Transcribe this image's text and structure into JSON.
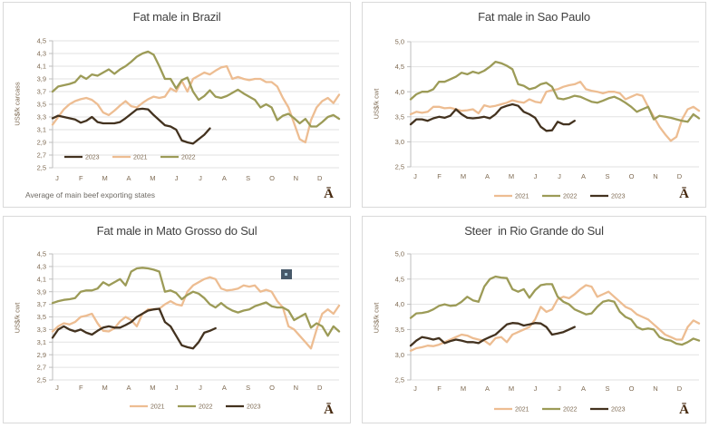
{
  "page": {
    "background": "#ffffff",
    "brand_glyph": "Ā"
  },
  "colors": {
    "series_2021": "#edbd92",
    "series_2022": "#9c9b57",
    "series_2023": "#43321f",
    "gridline": "#e2e2e2",
    "axis": "#bdbdbd",
    "tick_text": "#7e6a52",
    "title_text": "#3f3f3f",
    "footer_text": "#6e6a64",
    "panel_border": "#d9d9d9",
    "artifact_square": "#47596a",
    "artifact_dot": "#a9c9d9"
  },
  "months": [
    "J",
    "F",
    "M",
    "A",
    "M",
    "J",
    "J",
    "A",
    "S",
    "O",
    "N",
    "D"
  ],
  "chart_data": [
    {
      "type": "line",
      "title": "Fat male in Brazil",
      "ylabel": "US$/k carcass",
      "footer": "Average  of main  beef  exporting  states",
      "ylim": [
        2.5,
        4.5
      ],
      "yticks": [
        "4,5",
        "4,3",
        "4,1",
        "3,9",
        "3,7",
        "3,5",
        "3,3",
        "3,1",
        "2,9",
        "2,7",
        "2,5"
      ],
      "grid": true,
      "legend_position": "inside-bottom",
      "legend": [
        "2023",
        "2021",
        "2022"
      ],
      "series": [
        {
          "name": "2021",
          "color": "#edbd92",
          "values": [
            3.18,
            3.3,
            3.42,
            3.5,
            3.55,
            3.58,
            3.6,
            3.57,
            3.5,
            3.37,
            3.33,
            3.4,
            3.48,
            3.55,
            3.47,
            3.45,
            3.52,
            3.58,
            3.62,
            3.6,
            3.62,
            3.75,
            3.7,
            3.87,
            3.7,
            3.9,
            3.95,
            4.0,
            3.97,
            4.03,
            4.08,
            4.1,
            3.9,
            3.93,
            3.9,
            3.88,
            3.9,
            3.9,
            3.85,
            3.85,
            3.78,
            3.6,
            3.45,
            3.2,
            2.95,
            2.9,
            3.25,
            3.45,
            3.55,
            3.6,
            3.52,
            3.65
          ]
        },
        {
          "name": "2022",
          "color": "#9c9b57",
          "values": [
            3.7,
            3.78,
            3.8,
            3.82,
            3.85,
            3.95,
            3.9,
            3.97,
            3.95,
            4.0,
            4.05,
            3.98,
            4.05,
            4.1,
            4.17,
            4.25,
            4.3,
            4.33,
            4.28,
            4.1,
            3.9,
            3.9,
            3.75,
            3.88,
            3.92,
            3.7,
            3.57,
            3.63,
            3.72,
            3.62,
            3.6,
            3.63,
            3.68,
            3.73,
            3.67,
            3.62,
            3.57,
            3.45,
            3.5,
            3.45,
            3.25,
            3.32,
            3.35,
            3.28,
            3.2,
            3.27,
            3.15,
            3.15,
            3.22,
            3.3,
            3.33,
            3.27
          ]
        },
        {
          "name": "2023",
          "color": "#43321f",
          "values": [
            3.28,
            3.32,
            3.3,
            3.28,
            3.26,
            3.21,
            3.24,
            3.3,
            3.22,
            3.2,
            3.2,
            3.2,
            3.22,
            3.28,
            3.35,
            3.42,
            3.43,
            3.42,
            3.33,
            3.25,
            3.17,
            3.15,
            3.1,
            2.93,
            2.9,
            2.88,
            2.95,
            3.02,
            3.12
          ]
        }
      ]
    },
    {
      "type": "line",
      "title": "Fat male in Sao Paulo",
      "ylabel": "US$/k  cwt",
      "ylim": [
        2.5,
        5.0
      ],
      "yticks": [
        "5,0",
        "4,5",
        "4,0",
        "3,5",
        "3,0",
        "2,5"
      ],
      "grid": true,
      "legend_position": "below",
      "legend": [
        "2021",
        "2022",
        "2023"
      ],
      "series": [
        {
          "name": "2021",
          "color": "#edbd92",
          "values": [
            3.55,
            3.6,
            3.58,
            3.6,
            3.7,
            3.7,
            3.67,
            3.68,
            3.65,
            3.62,
            3.63,
            3.65,
            3.57,
            3.73,
            3.7,
            3.72,
            3.75,
            3.78,
            3.83,
            3.8,
            3.78,
            3.85,
            3.8,
            3.78,
            4.0,
            4.03,
            4.05,
            4.1,
            4.13,
            4.15,
            4.2,
            4.05,
            4.02,
            4.0,
            3.97,
            4.0,
            4.0,
            3.97,
            3.85,
            3.9,
            3.95,
            3.92,
            3.7,
            3.5,
            3.3,
            3.15,
            3.02,
            3.1,
            3.45,
            3.65,
            3.7,
            3.62
          ]
        },
        {
          "name": "2022",
          "color": "#9c9b57",
          "values": [
            3.85,
            3.95,
            4.0,
            4.0,
            4.05,
            4.2,
            4.2,
            4.25,
            4.3,
            4.38,
            4.35,
            4.4,
            4.37,
            4.42,
            4.5,
            4.6,
            4.57,
            4.52,
            4.45,
            4.15,
            4.12,
            4.05,
            4.08,
            4.15,
            4.18,
            4.1,
            3.87,
            3.85,
            3.88,
            3.92,
            3.9,
            3.85,
            3.8,
            3.78,
            3.82,
            3.87,
            3.9,
            3.85,
            3.78,
            3.7,
            3.6,
            3.65,
            3.7,
            3.45,
            3.52,
            3.5,
            3.48,
            3.45,
            3.42,
            3.4,
            3.55,
            3.47
          ]
        },
        {
          "name": "2023",
          "color": "#43321f",
          "values": [
            3.35,
            3.45,
            3.45,
            3.42,
            3.47,
            3.5,
            3.48,
            3.52,
            3.65,
            3.55,
            3.48,
            3.47,
            3.48,
            3.5,
            3.47,
            3.55,
            3.68,
            3.72,
            3.75,
            3.72,
            3.6,
            3.55,
            3.48,
            3.3,
            3.22,
            3.23,
            3.4,
            3.35,
            3.35,
            3.42
          ]
        }
      ]
    },
    {
      "type": "line",
      "title": "Fat male in Mato Grosso do Sul",
      "ylabel": "US$/k  cwt",
      "ylim": [
        2.5,
        4.5
      ],
      "yticks": [
        "4,5",
        "4,3",
        "4,1",
        "3,9",
        "3,7",
        "3,5",
        "3,3",
        "3,1",
        "2,9",
        "2,7",
        "2,5"
      ],
      "grid": true,
      "legend_position": "below",
      "legend": [
        "2021",
        "2022",
        "2023"
      ],
      "series": [
        {
          "name": "2021",
          "color": "#edbd92",
          "values": [
            3.27,
            3.35,
            3.4,
            3.38,
            3.42,
            3.5,
            3.52,
            3.55,
            3.4,
            3.28,
            3.27,
            3.32,
            3.43,
            3.5,
            3.45,
            3.35,
            3.55,
            3.62,
            3.62,
            3.63,
            3.7,
            3.75,
            3.7,
            3.68,
            3.9,
            4.0,
            4.05,
            4.1,
            4.13,
            4.1,
            3.95,
            3.92,
            3.93,
            3.95,
            4.0,
            3.98,
            4.0,
            3.9,
            3.93,
            3.9,
            3.75,
            3.65,
            3.35,
            3.3,
            3.2,
            3.1,
            3.0,
            3.3,
            3.55,
            3.62,
            3.55,
            3.68
          ]
        },
        {
          "name": "2022",
          "color": "#9c9b57",
          "values": [
            3.72,
            3.75,
            3.77,
            3.78,
            3.8,
            3.9,
            3.92,
            3.92,
            3.95,
            4.05,
            4.0,
            4.05,
            4.1,
            4.0,
            4.22,
            4.27,
            4.28,
            4.27,
            4.25,
            4.22,
            3.9,
            3.92,
            3.88,
            3.78,
            3.85,
            3.9,
            3.87,
            3.8,
            3.7,
            3.65,
            3.72,
            3.65,
            3.6,
            3.57,
            3.6,
            3.62,
            3.67,
            3.7,
            3.73,
            3.67,
            3.65,
            3.65,
            3.6,
            3.45,
            3.5,
            3.55,
            3.33,
            3.4,
            3.35,
            3.2,
            3.35,
            3.27
          ]
        },
        {
          "name": "2023",
          "color": "#43321f",
          "values": [
            3.17,
            3.3,
            3.35,
            3.3,
            3.27,
            3.3,
            3.25,
            3.22,
            3.28,
            3.33,
            3.35,
            3.33,
            3.33,
            3.37,
            3.42,
            3.5,
            3.55,
            3.6,
            3.62,
            3.63,
            3.42,
            3.35,
            3.2,
            3.05,
            3.02,
            3.0,
            3.1,
            3.25,
            3.28,
            3.32
          ]
        }
      ]
    },
    {
      "type": "line",
      "title": "Steer  in Rio Grande do Sul",
      "ylabel": "US$/k  cwt",
      "ylim": [
        2.5,
        5.0
      ],
      "yticks": [
        "5,0",
        "4,5",
        "4,0",
        "3,5",
        "3,0",
        "2,5"
      ],
      "grid": true,
      "legend_position": "below",
      "legend": [
        "2021",
        "2022",
        "2023"
      ],
      "series": [
        {
          "name": "2021",
          "color": "#edbd92",
          "values": [
            3.08,
            3.13,
            3.15,
            3.18,
            3.17,
            3.2,
            3.25,
            3.3,
            3.35,
            3.4,
            3.38,
            3.33,
            3.3,
            3.28,
            3.2,
            3.33,
            3.35,
            3.25,
            3.4,
            3.45,
            3.5,
            3.55,
            3.7,
            3.95,
            3.85,
            3.9,
            4.1,
            4.15,
            4.12,
            4.2,
            4.3,
            4.38,
            4.35,
            4.15,
            4.2,
            4.25,
            4.15,
            4.05,
            3.95,
            3.9,
            3.8,
            3.75,
            3.7,
            3.6,
            3.5,
            3.4,
            3.35,
            3.3,
            3.3,
            3.55,
            3.68,
            3.62
          ]
        },
        {
          "name": "2022",
          "color": "#9c9b57",
          "values": [
            3.73,
            3.82,
            3.83,
            3.85,
            3.9,
            3.97,
            4.0,
            3.97,
            3.98,
            4.05,
            4.15,
            4.08,
            4.05,
            4.35,
            4.5,
            4.55,
            4.53,
            4.52,
            4.3,
            4.25,
            4.3,
            4.13,
            4.28,
            4.38,
            4.4,
            4.4,
            4.15,
            4.05,
            4.0,
            3.9,
            3.85,
            3.8,
            3.82,
            3.95,
            4.05,
            4.08,
            4.05,
            3.85,
            3.75,
            3.7,
            3.55,
            3.5,
            3.52,
            3.5,
            3.35,
            3.3,
            3.28,
            3.22,
            3.2,
            3.25,
            3.32,
            3.28
          ]
        },
        {
          "name": "2023",
          "color": "#43321f",
          "values": [
            3.18,
            3.28,
            3.35,
            3.33,
            3.3,
            3.33,
            3.23,
            3.27,
            3.3,
            3.28,
            3.25,
            3.25,
            3.23,
            3.3,
            3.35,
            3.4,
            3.5,
            3.6,
            3.63,
            3.62,
            3.58,
            3.6,
            3.63,
            3.62,
            3.55,
            3.4,
            3.42,
            3.45,
            3.5,
            3.55
          ]
        }
      ]
    }
  ]
}
